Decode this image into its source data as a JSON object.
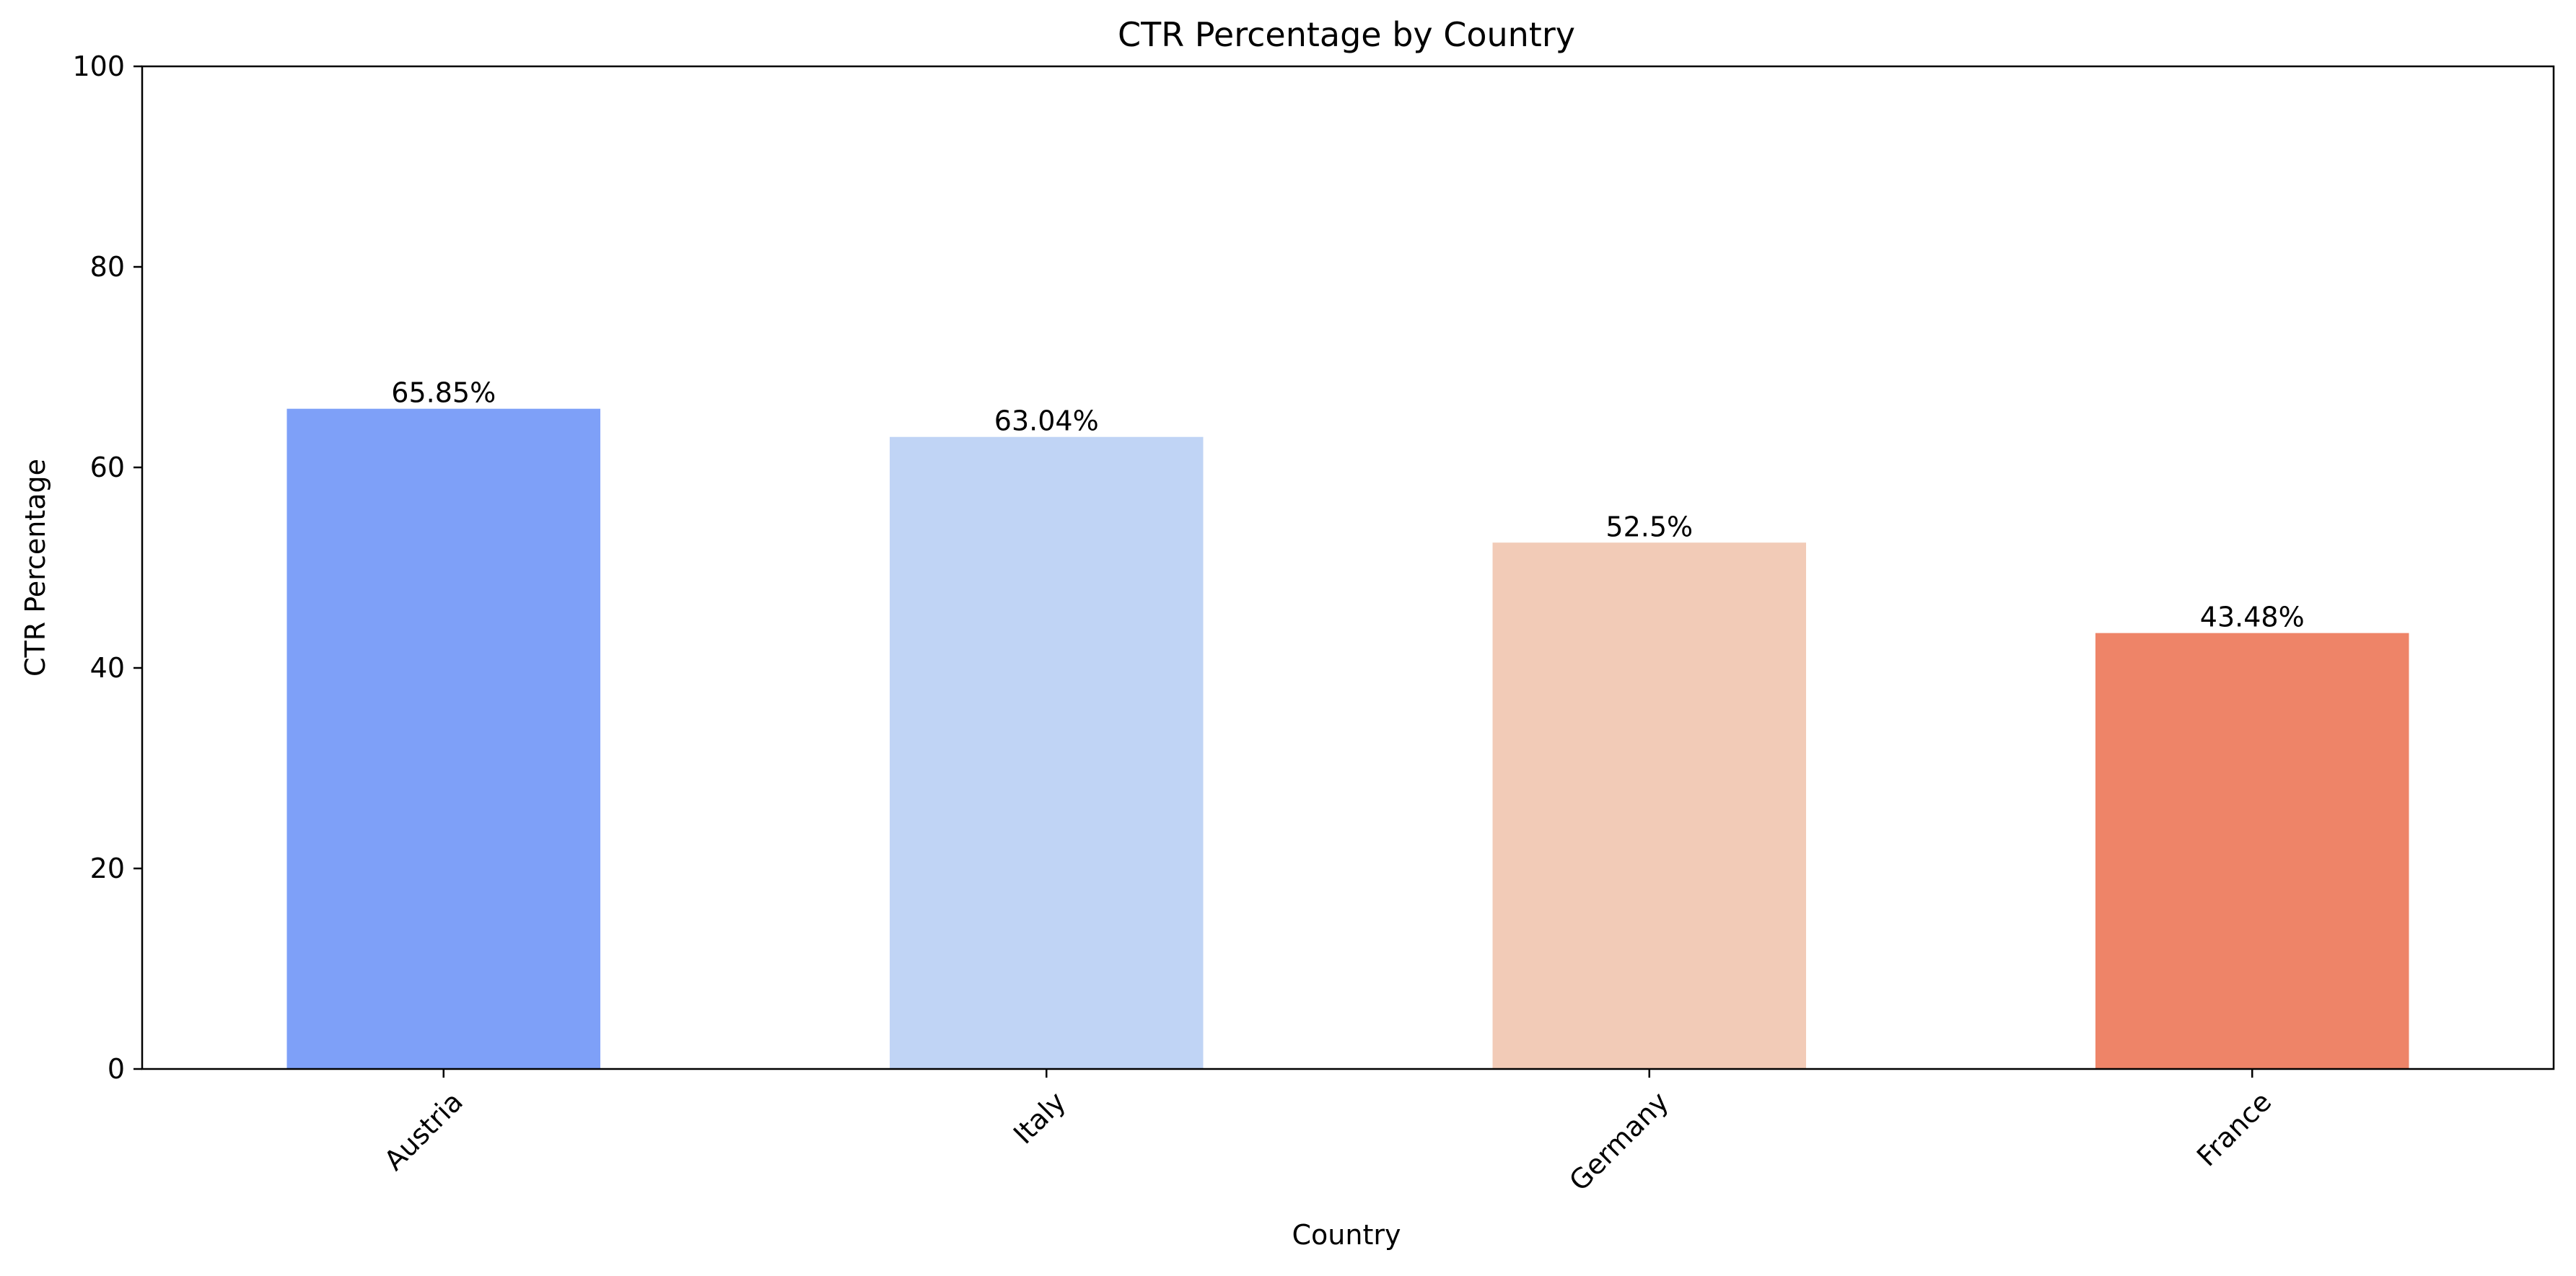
{
  "chart_data": {
    "type": "bar",
    "title": "CTR Percentage by Country",
    "xlabel": "Country",
    "ylabel": "CTR Percentage",
    "categories": [
      "Austria",
      "Italy",
      "Germany",
      "France"
    ],
    "values": [
      65.85,
      63.04,
      52.5,
      43.48
    ],
    "value_labels": [
      "65.85%",
      "63.04%",
      "52.5%",
      "43.48%"
    ],
    "colors": [
      "#7ea0f8",
      "#c0d4f5",
      "#f2cbb7",
      "#ee8468"
    ],
    "ylim": [
      0,
      100
    ],
    "yticks": [
      0,
      20,
      40,
      60,
      80,
      100
    ],
    "grid": false,
    "legend": "none"
  }
}
